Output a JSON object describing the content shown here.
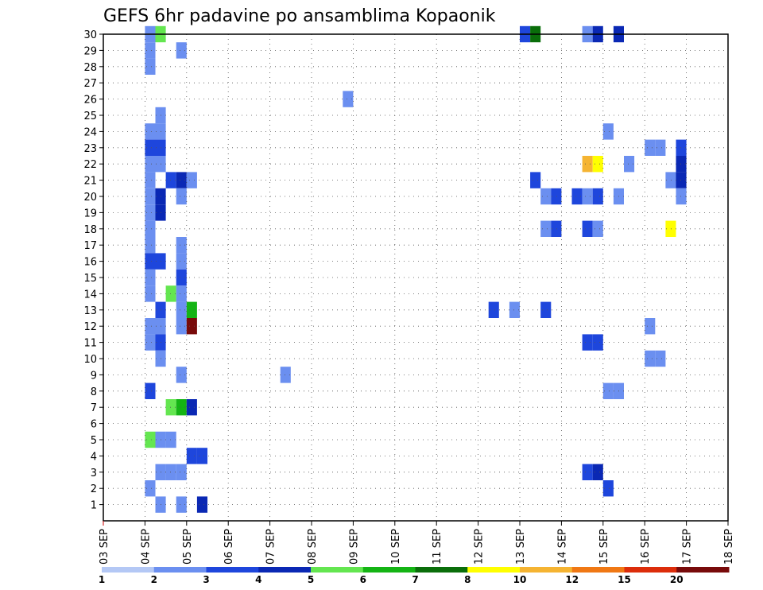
{
  "chart_data": {
    "type": "heatmap",
    "title": "GEFS 6hr padavine po ansamblima Kopaonik",
    "x_ticks": [
      "03 SEP",
      "04 SEP",
      "05 SEP",
      "06 SEP",
      "07 SEP",
      "08 SEP",
      "09 SEP",
      "10 SEP",
      "11 SEP",
      "12 SEP",
      "13 SEP",
      "14 SEP",
      "15 SEP",
      "16 SEP",
      "17 SEP",
      "18 SEP"
    ],
    "y_ticks": [
      1,
      2,
      3,
      4,
      5,
      6,
      7,
      8,
      9,
      10,
      11,
      12,
      13,
      14,
      15,
      16,
      17,
      18,
      19,
      20,
      21,
      22,
      23,
      24,
      25,
      26,
      27,
      28,
      29,
      30
    ],
    "x_range_days": [
      3,
      18
    ],
    "y_range": [
      0,
      30
    ],
    "grid": true,
    "colorbar": {
      "labels": [
        "1",
        "2",
        "3",
        "4",
        "5",
        "6",
        "7",
        "8",
        "10",
        "12",
        "15",
        "20"
      ],
      "colors": [
        "#b4c8f5",
        "#6b8ff0",
        "#1e46dc",
        "#0a28b4",
        "#64e650",
        "#14b414",
        "#0a6e0a",
        "#ffff00",
        "#f5b432",
        "#f07814",
        "#dc2d0a",
        "#780a0a"
      ]
    },
    "cells": [
      [
        4.0,
        30,
        1
      ],
      [
        4.25,
        30,
        4
      ],
      [
        13.0,
        30,
        2
      ],
      [
        13.25,
        30,
        6
      ],
      [
        14.5,
        30,
        1
      ],
      [
        14.75,
        30,
        3
      ],
      [
        15.25,
        30,
        3
      ],
      [
        4.0,
        29,
        1
      ],
      [
        4.75,
        29,
        1
      ],
      [
        4.0,
        28,
        1
      ],
      [
        8.75,
        26,
        1
      ],
      [
        4.25,
        25,
        1
      ],
      [
        4.0,
        24,
        1
      ],
      [
        4.25,
        24,
        1
      ],
      [
        15.0,
        24,
        1
      ],
      [
        4.0,
        23,
        2
      ],
      [
        4.25,
        23,
        2
      ],
      [
        16.0,
        23,
        1
      ],
      [
        16.25,
        23,
        1
      ],
      [
        16.75,
        23,
        2
      ],
      [
        4.0,
        22,
        1
      ],
      [
        4.25,
        22,
        1
      ],
      [
        14.5,
        22,
        8
      ],
      [
        14.75,
        22,
        7
      ],
      [
        15.5,
        22,
        1
      ],
      [
        16.75,
        22,
        3
      ],
      [
        4.0,
        21,
        1
      ],
      [
        4.5,
        21,
        2
      ],
      [
        4.75,
        21,
        3
      ],
      [
        5.0,
        21,
        1
      ],
      [
        13.25,
        21,
        2
      ],
      [
        16.5,
        21,
        1
      ],
      [
        16.75,
        21,
        3
      ],
      [
        4.0,
        20,
        1
      ],
      [
        4.25,
        20,
        3
      ],
      [
        4.75,
        20,
        1
      ],
      [
        13.5,
        20,
        1
      ],
      [
        13.75,
        20,
        2
      ],
      [
        14.25,
        20,
        2
      ],
      [
        14.5,
        20,
        1
      ],
      [
        14.75,
        20,
        2
      ],
      [
        15.25,
        20,
        1
      ],
      [
        16.75,
        20,
        1
      ],
      [
        4.0,
        19,
        1
      ],
      [
        4.25,
        19,
        3
      ],
      [
        4.0,
        18,
        1
      ],
      [
        13.5,
        18,
        1
      ],
      [
        13.75,
        18,
        2
      ],
      [
        14.5,
        18,
        2
      ],
      [
        14.75,
        18,
        1
      ],
      [
        16.5,
        18,
        7
      ],
      [
        4.0,
        17,
        1
      ],
      [
        4.75,
        17,
        1
      ],
      [
        4.0,
        16,
        2
      ],
      [
        4.25,
        16,
        2
      ],
      [
        4.75,
        16,
        1
      ],
      [
        4.0,
        15,
        1
      ],
      [
        4.75,
        15,
        2
      ],
      [
        4.0,
        14,
        1
      ],
      [
        4.5,
        14,
        4
      ],
      [
        4.75,
        14,
        1
      ],
      [
        4.25,
        13,
        2
      ],
      [
        4.75,
        13,
        1
      ],
      [
        5.0,
        13,
        5
      ],
      [
        12.25,
        13,
        2
      ],
      [
        12.75,
        13,
        1
      ],
      [
        13.5,
        13,
        2
      ],
      [
        4.0,
        12,
        1
      ],
      [
        4.25,
        12,
        1
      ],
      [
        4.75,
        12,
        1
      ],
      [
        5.0,
        12,
        11
      ],
      [
        16.0,
        12,
        1
      ],
      [
        4.0,
        11,
        1
      ],
      [
        4.25,
        11,
        2
      ],
      [
        14.5,
        11,
        2
      ],
      [
        14.75,
        11,
        2
      ],
      [
        4.25,
        10,
        1
      ],
      [
        16.0,
        10,
        1
      ],
      [
        16.25,
        10,
        1
      ],
      [
        4.75,
        9,
        1
      ],
      [
        7.25,
        9,
        1
      ],
      [
        4.0,
        8,
        2
      ],
      [
        15.0,
        8,
        1
      ],
      [
        15.25,
        8,
        1
      ],
      [
        4.5,
        7,
        4
      ],
      [
        4.75,
        7,
        5
      ],
      [
        5.0,
        7,
        3
      ],
      [
        4.0,
        5,
        4
      ],
      [
        4.25,
        5,
        1
      ],
      [
        4.5,
        5,
        1
      ],
      [
        5.0,
        4,
        2
      ],
      [
        5.25,
        4,
        2
      ],
      [
        4.25,
        3,
        1
      ],
      [
        4.5,
        3,
        1
      ],
      [
        4.75,
        3,
        1
      ],
      [
        14.5,
        3,
        2
      ],
      [
        14.75,
        3,
        3
      ],
      [
        4.0,
        2,
        1
      ],
      [
        15.0,
        2,
        2
      ],
      [
        4.25,
        1,
        1
      ],
      [
        4.75,
        1,
        1
      ],
      [
        5.25,
        1,
        3
      ]
    ]
  }
}
